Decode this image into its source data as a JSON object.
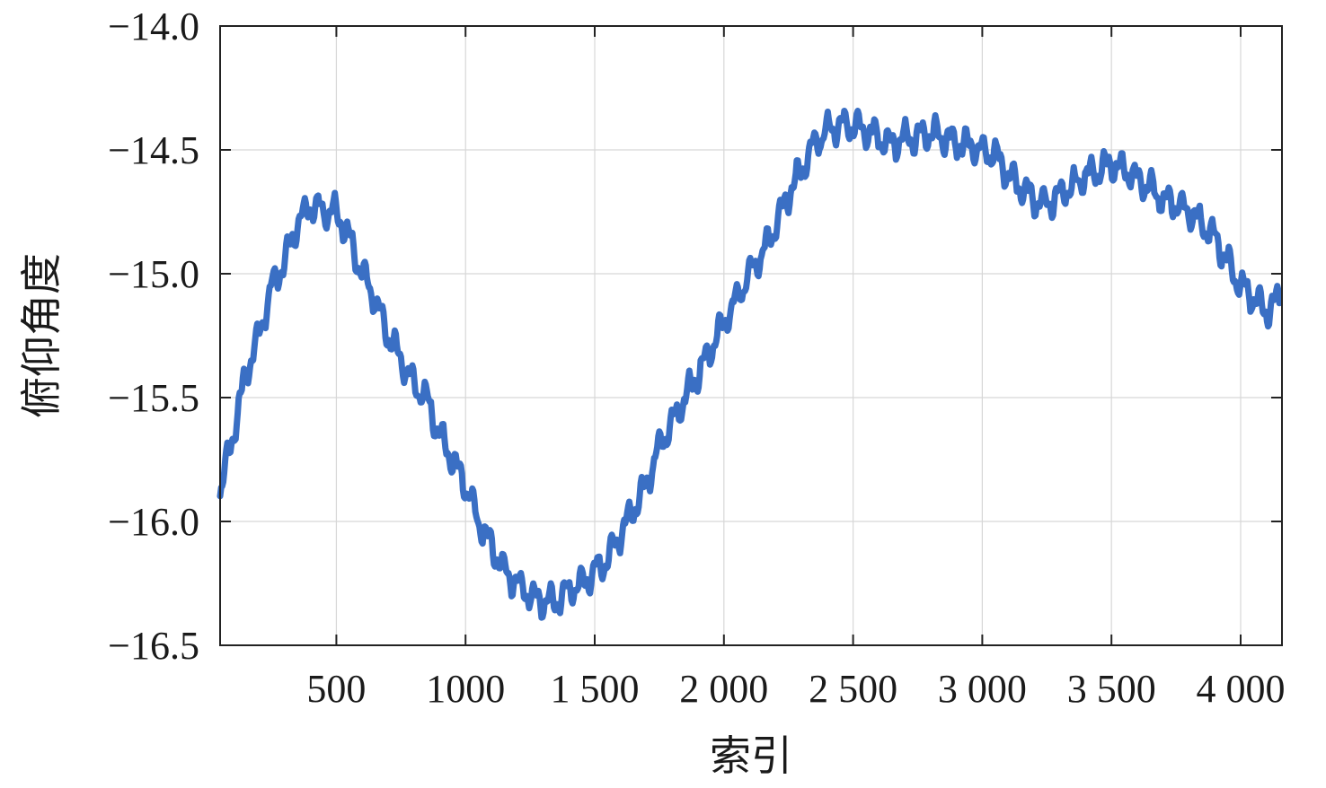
{
  "chart_data": {
    "type": "line",
    "xlabel": "索引",
    "ylabel": "俯仰角度",
    "xlim": [
      50,
      4160
    ],
    "ylim": [
      -16.5,
      -14.0
    ],
    "grid": true,
    "line_color": "#3a6fc4",
    "x_ticks": [
      {
        "value": 500,
        "label": "500"
      },
      {
        "value": 1000,
        "label": "1000"
      },
      {
        "value": 1500,
        "label": "1 500"
      },
      {
        "value": 2000,
        "label": "2 000"
      },
      {
        "value": 2500,
        "label": "2 500"
      },
      {
        "value": 3000,
        "label": "3 000"
      },
      {
        "value": 3500,
        "label": "3 500"
      },
      {
        "value": 4000,
        "label": "4 000"
      }
    ],
    "y_ticks": [
      {
        "value": -14.0,
        "label": "−14.0"
      },
      {
        "value": -14.5,
        "label": "−14.5"
      },
      {
        "value": -15.0,
        "label": "−15.0"
      },
      {
        "value": -15.5,
        "label": "−15.5"
      },
      {
        "value": -16.0,
        "label": "−16.0"
      },
      {
        "value": -16.5,
        "label": "−16.5"
      }
    ],
    "series": [
      {
        "x": [
          50,
          100,
          150,
          200,
          250,
          300,
          350,
          400,
          450,
          500,
          550,
          600,
          650,
          700,
          750,
          800,
          850,
          900,
          950,
          1000,
          1050,
          1100,
          1150,
          1200,
          1250,
          1300,
          1350,
          1400,
          1450,
          1500,
          1550,
          1600,
          1650,
          1700,
          1750,
          1800,
          1850,
          1900,
          1950,
          2000,
          2050,
          2100,
          2150,
          2200,
          2250,
          2300,
          2350,
          2400,
          2450,
          2500,
          2550,
          2600,
          2650,
          2700,
          2750,
          2800,
          2850,
          2900,
          2950,
          3000,
          3050,
          3100,
          3150,
          3200,
          3250,
          3300,
          3350,
          3400,
          3450,
          3500,
          3550,
          3600,
          3650,
          3700,
          3750,
          3800,
          3850,
          3900,
          3950,
          4000,
          4050,
          4100,
          4150
        ],
        "y": [
          -15.88,
          -15.65,
          -15.4,
          -15.25,
          -15.05,
          -14.95,
          -14.8,
          -14.72,
          -14.75,
          -14.75,
          -14.85,
          -15.0,
          -15.1,
          -15.25,
          -15.35,
          -15.45,
          -15.5,
          -15.65,
          -15.75,
          -15.85,
          -16.0,
          -16.1,
          -16.2,
          -16.25,
          -16.3,
          -16.32,
          -16.32,
          -16.28,
          -16.25,
          -16.2,
          -16.15,
          -16.05,
          -15.95,
          -15.85,
          -15.7,
          -15.6,
          -15.5,
          -15.4,
          -15.3,
          -15.2,
          -15.1,
          -15.0,
          -14.92,
          -14.8,
          -14.68,
          -14.58,
          -14.48,
          -14.42,
          -14.4,
          -14.4,
          -14.42,
          -14.45,
          -14.48,
          -14.45,
          -14.45,
          -14.43,
          -14.45,
          -14.47,
          -14.48,
          -14.5,
          -14.52,
          -14.6,
          -14.65,
          -14.7,
          -14.72,
          -14.68,
          -14.65,
          -14.6,
          -14.58,
          -14.56,
          -14.58,
          -14.62,
          -14.65,
          -14.7,
          -14.72,
          -14.75,
          -14.8,
          -14.85,
          -14.95,
          -15.05,
          -15.1,
          -15.15,
          -15.1
        ]
      }
    ]
  }
}
